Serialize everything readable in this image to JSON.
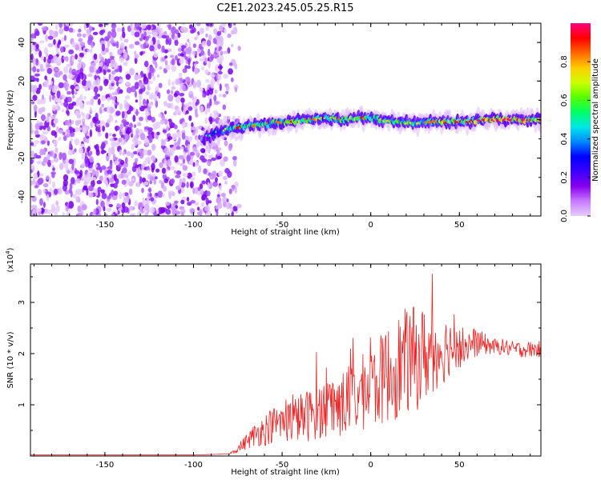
{
  "chart_data": [
    {
      "type": "heatmap",
      "title": "C2E1.2023.245.05.25.R15",
      "xlabel": "Height of straight line (km)",
      "ylabel": "Frequency (Hz)",
      "xlim": [
        -192,
        96
      ],
      "ylim": [
        -50,
        50
      ],
      "xticks": [
        "-150",
        "-100",
        "-50",
        "0",
        "50"
      ],
      "yticks": [
        "-40",
        "-20",
        "0",
        "20",
        "40"
      ],
      "colorbar": {
        "label": "Normalized spectral amplitude",
        "range": [
          0,
          1
        ],
        "ticks": [
          "0.0",
          "0.2",
          "0.4",
          "0.6",
          "0.8"
        ],
        "colormap": [
          "#e6ccff",
          "#c87aff",
          "#8800ee",
          "#3b00ff",
          "#0000ff",
          "#0088ff",
          "#00e8e8",
          "#00ff66",
          "#55ff00",
          "#ccff00",
          "#ffcc00",
          "#ff6600",
          "#ff0000",
          "#ff0080"
        ]
      },
      "noise_region_x": [
        -192,
        -80
      ],
      "signal_trace": {
        "x": [
          -95,
          -85,
          -75,
          -65,
          -55,
          -45,
          -35,
          -25,
          -15,
          -5,
          5,
          15,
          25,
          35,
          45,
          55,
          65,
          75,
          85,
          96
        ],
        "frequency": [
          -10,
          -6,
          -4,
          -3,
          -2,
          -1,
          0,
          1,
          0,
          1,
          0,
          -1,
          -2,
          -1,
          -1,
          -1,
          0,
          0,
          0,
          0
        ],
        "amplitude": [
          0.15,
          0.3,
          0.6,
          0.55,
          0.5,
          0.6,
          0.55,
          0.45,
          0.55,
          0.6,
          0.5,
          0.5,
          0.45,
          0.55,
          0.6,
          0.65,
          0.7,
          0.75,
          0.7,
          0.7
        ]
      }
    },
    {
      "type": "line",
      "xlabel": "Height of straight line (km)",
      "ylabel": "SNR (10 * v/v)",
      "scale_label": "(x10",
      "scale_exp": "4",
      "xlim": [
        -192,
        96
      ],
      "ylim": [
        0,
        3.75
      ],
      "xticks": [
        "-150",
        "-100",
        "-50",
        "0",
        "50"
      ],
      "yticks": [
        "1",
        "2",
        "3"
      ],
      "color": "#ee2222",
      "series": [
        {
          "x": [
            -192,
            -150,
            -100,
            -80,
            -75,
            -70,
            -65,
            -60,
            -55,
            -50,
            -45,
            -40,
            -35,
            -30,
            -25,
            -20,
            -15,
            -10,
            -5,
            0,
            5,
            10,
            15,
            20,
            25,
            30,
            35,
            40,
            45,
            50,
            55,
            60,
            65,
            70,
            75,
            80,
            85,
            90,
            96
          ],
          "values": [
            0.02,
            0.02,
            0.02,
            0.04,
            0.15,
            0.3,
            0.45,
            0.55,
            0.65,
            0.7,
            0.75,
            0.8,
            0.85,
            0.95,
            1.0,
            1.05,
            1.1,
            1.2,
            1.3,
            1.4,
            1.55,
            1.7,
            1.85,
            1.95,
            2.0,
            2.05,
            2.1,
            2.15,
            2.2,
            2.2,
            2.2,
            2.25,
            2.2,
            2.15,
            2.15,
            2.1,
            2.1,
            2.1,
            2.1
          ],
          "noise_amplitude": [
            0,
            0,
            0,
            0,
            0.1,
            0.2,
            0.3,
            0.4,
            0.45,
            0.5,
            0.55,
            0.6,
            0.65,
            0.7,
            0.75,
            0.8,
            0.85,
            0.9,
            0.95,
            1.0,
            1.1,
            1.2,
            1.3,
            1.3,
            1.3,
            1.2,
            1.0,
            0.9,
            0.7,
            0.55,
            0.45,
            0.35,
            0.25,
            0.2,
            0.2,
            0.2,
            0.2,
            0.2,
            0.2
          ]
        }
      ]
    }
  ]
}
